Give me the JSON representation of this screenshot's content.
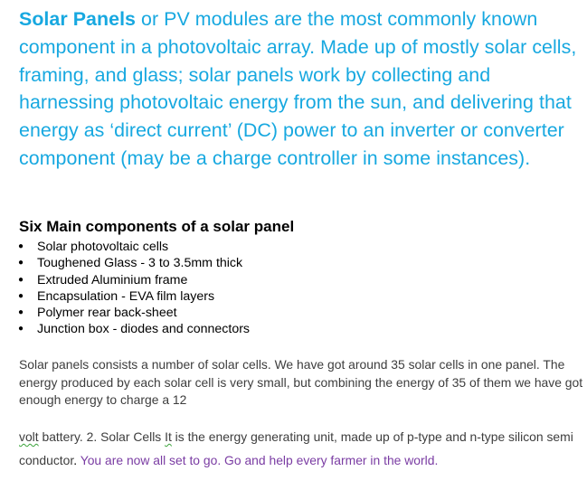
{
  "intro": {
    "lead": "Solar Panels",
    "body": " or PV modules are the most commonly known component in a photovoltaic array. Made up of mostly solar cells, framing, and glass; solar panels work by collecting and harnessing photovoltaic energy from the sun, and delivering that energy as ‘direct current’ (DC) power to an inverter or converter component (may be a charge controller in some instances)."
  },
  "components": {
    "heading": "Six Main components of a solar panel",
    "bullet": "●",
    "items": [
      "Solar photovoltaic cells",
      "Toughened Glass - 3 to 3.5mm thick",
      "Extruded Aluminium frame",
      "Encapsulation - EVA film layers",
      "Polymer rear back-sheet",
      "Junction box - diodes and connectors"
    ]
  },
  "summary": {
    "text": "Solar panels consists a number of solar cells. We have got around 35 solar cells in one panel. The energy produced by each solar cell is very small, but combining the energy of 35 of them we have got enough energy to charge a 12"
  },
  "closing": {
    "misspelled_word": "volt",
    "text_part1": " battery. 2. Solar Cells ",
    "misspelled_word2": "It",
    "text_part2": " is the energy generating unit, made up of p-type and n-type silicon semi conductor",
    "period": ".",
    "cta": " You are now all set to go. Go and help every farmer in the world."
  },
  "colors": {
    "intro_blue": "#17a8e0",
    "body_gray": "#3d3d3d",
    "cta_purple": "#7a3ca3",
    "spellcheck_green": "#3aa33a"
  }
}
